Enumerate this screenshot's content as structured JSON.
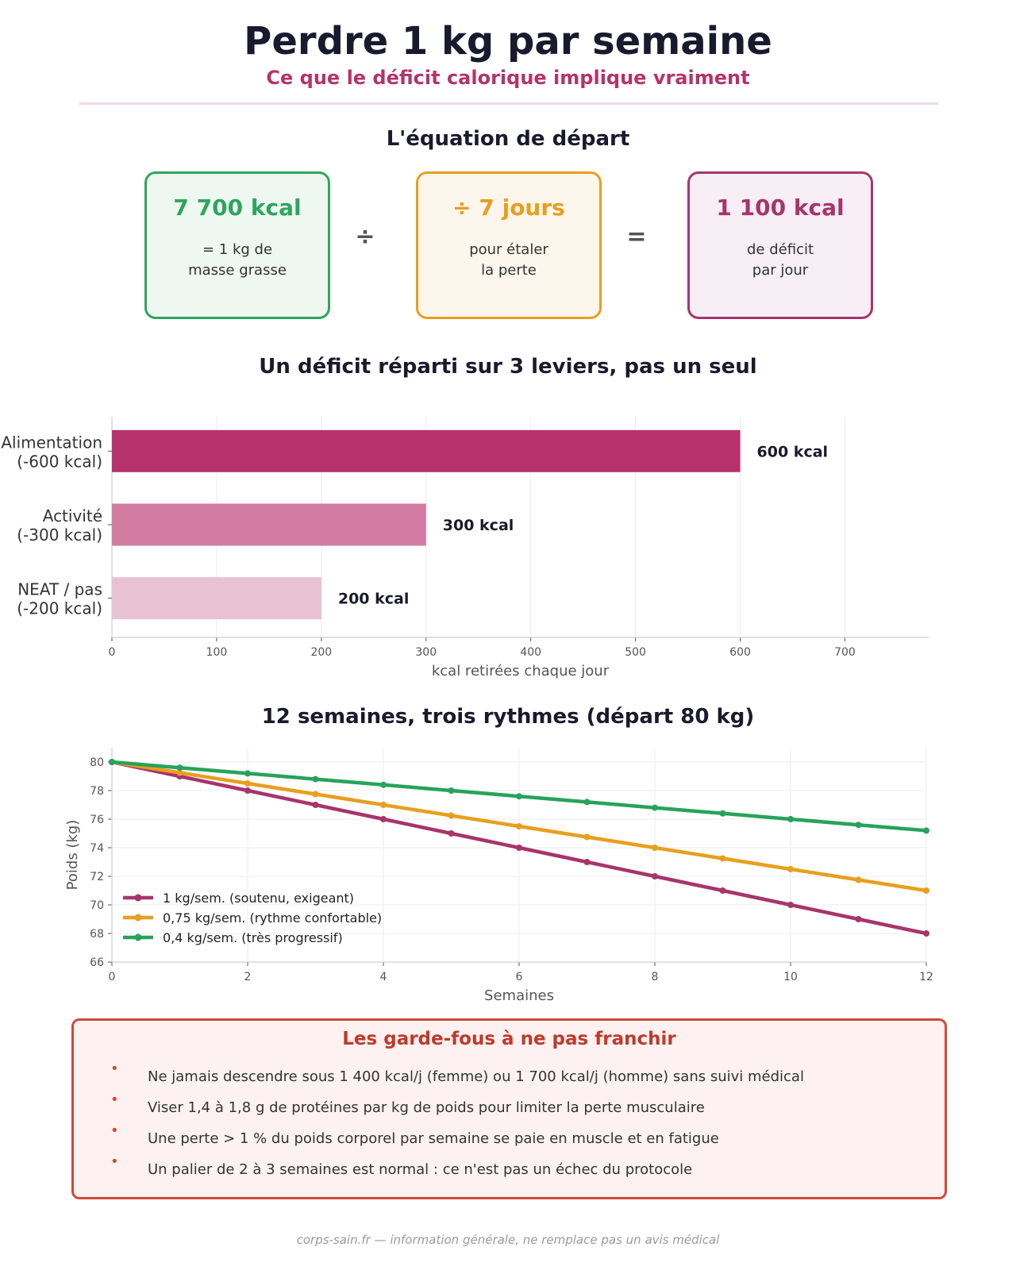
{
  "header": {
    "title": "Perdre 1 kg par semaine",
    "subtitle": "Ce que le déficit calorique implique vraiment"
  },
  "equation": {
    "title": "L'équation de départ",
    "boxes": [
      {
        "value": "7 700 kcal",
        "desc": "= 1 kg de\nmasse grasse",
        "color": "#2ea55e",
        "bg": "#eef8f0"
      },
      {
        "value": "÷ 7 jours",
        "desc": "pour étaler\nla perte",
        "color": "#e89f1f",
        "bg": "#fdf6ec"
      },
      {
        "value": "1 100 kcal",
        "desc": "de déficit\npar jour",
        "color": "#a8346c",
        "bg": "#f7eef6"
      }
    ],
    "operators": [
      "÷",
      "="
    ]
  },
  "chart_data": [
    {
      "type": "bar",
      "orientation": "horizontal",
      "title": "Un déficit réparti sur 3 leviers, pas un seul",
      "categories": [
        "Alimentation\n(-600 kcal)",
        "Activité\n(-300 kcal)",
        "NEAT / pas\n(-200 kcal)"
      ],
      "values": [
        600,
        300,
        200
      ],
      "data_labels": [
        "600 kcal",
        "300 kcal",
        "200 kcal"
      ],
      "colors": [
        "#b5336a",
        "#d27ba3",
        "#e8c1d3"
      ],
      "xlabel": "kcal retirées chaque jour",
      "xlim": [
        0,
        780
      ],
      "xticks": [
        0,
        100,
        200,
        300,
        400,
        500,
        600,
        700
      ],
      "grid": true
    },
    {
      "type": "line",
      "title": "12 semaines, trois rythmes (départ 80 kg)",
      "xlabel": "Semaines",
      "ylabel": "Poids (kg)",
      "x": [
        0,
        1,
        2,
        3,
        4,
        5,
        6,
        7,
        8,
        9,
        10,
        11,
        12
      ],
      "xlim": [
        0,
        12
      ],
      "ylim": [
        66,
        81
      ],
      "xticks": [
        0,
        2,
        4,
        6,
        8,
        10,
        12
      ],
      "yticks": [
        66,
        68,
        70,
        72,
        74,
        76,
        78,
        80
      ],
      "grid": true,
      "legend": "lower-left",
      "series": [
        {
          "name": "1 kg/sem. (soutenu, exigeant)",
          "color": "#a8346c",
          "values": [
            80,
            79,
            78,
            77,
            76,
            75,
            74,
            73,
            72,
            71,
            70,
            69,
            68
          ]
        },
        {
          "name": "0,75 kg/sem. (rythme confortable)",
          "color": "#e89f1f",
          "values": [
            80,
            79.25,
            78.5,
            77.75,
            77,
            76.25,
            75.5,
            74.75,
            74,
            73.25,
            72.5,
            71.75,
            71
          ]
        },
        {
          "name": "0,4 kg/sem. (très progressif)",
          "color": "#27a35a",
          "values": [
            80,
            79.6,
            79.2,
            78.8,
            78.4,
            78,
            77.6,
            77.2,
            76.8,
            76.4,
            76,
            75.6,
            75.2
          ]
        }
      ]
    }
  ],
  "warnings": {
    "title": "Les garde-fous à ne pas franchir",
    "items": [
      "Ne jamais descendre sous 1 400 kcal/j (femme) ou 1 700 kcal/j (homme) sans suivi médical",
      "Viser 1,4 à 1,8 g de protéines par kg de poids pour limiter la perte musculaire",
      "Une perte > 1 % du poids corporel par semaine se paie en muscle et en fatigue",
      "Un palier de 2 à 3 semaines est normal : ce n'est pas un échec du protocole"
    ],
    "bullet": "•"
  },
  "footer": "corps-sain.fr — information générale, ne remplace pas un avis médical"
}
